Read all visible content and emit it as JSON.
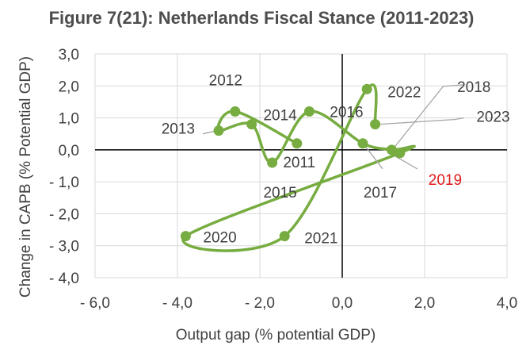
{
  "chart_data": {
    "type": "line",
    "title": "Figure 7(21): Netherlands Fiscal Stance (2011-2023)",
    "xlabel": "Output gap (% potential  GDP)",
    "ylabel": "Change in CAPB (% Potential  GDP)",
    "xlim": [
      -6,
      4
    ],
    "ylim": [
      -4,
      3
    ],
    "x_tick_labels": [
      "- 6,0",
      "- 4,0",
      "- 2,0",
      "0,0",
      "2,0",
      "4,0"
    ],
    "y_tick_labels": [
      "3,0",
      "2,0",
      "1,0",
      "0,0",
      "- 1,0",
      "- 2,0",
      "- 3,0",
      "- 4,0"
    ],
    "grid": true,
    "series_color": "#77ac41",
    "highlight_color": "#e01b1b",
    "series": [
      {
        "name": "Netherlands",
        "points": [
          {
            "year": "2011",
            "x": -1.1,
            "y": 0.2
          },
          {
            "year": "2012",
            "x": -2.6,
            "y": 1.2
          },
          {
            "year": "2013",
            "x": -3.0,
            "y": 0.6
          },
          {
            "year": "2014",
            "x": -2.2,
            "y": 0.8
          },
          {
            "year": "2015",
            "x": -1.7,
            "y": -0.4
          },
          {
            "year": "2016",
            "x": -0.8,
            "y": 1.2
          },
          {
            "year": "2017",
            "x": 0.5,
            "y": 0.2
          },
          {
            "year": "2018",
            "x": 1.2,
            "y": 0.0
          },
          {
            "year": "2019",
            "x": 1.4,
            "y": -0.1
          },
          {
            "year": "2020",
            "x": -3.8,
            "y": -2.7
          },
          {
            "year": "2021",
            "x": -1.4,
            "y": -2.7
          },
          {
            "year": "2022",
            "x": 0.6,
            "y": 1.9
          },
          {
            "year": "2023",
            "x": 0.8,
            "y": 0.8
          }
        ]
      }
    ]
  }
}
